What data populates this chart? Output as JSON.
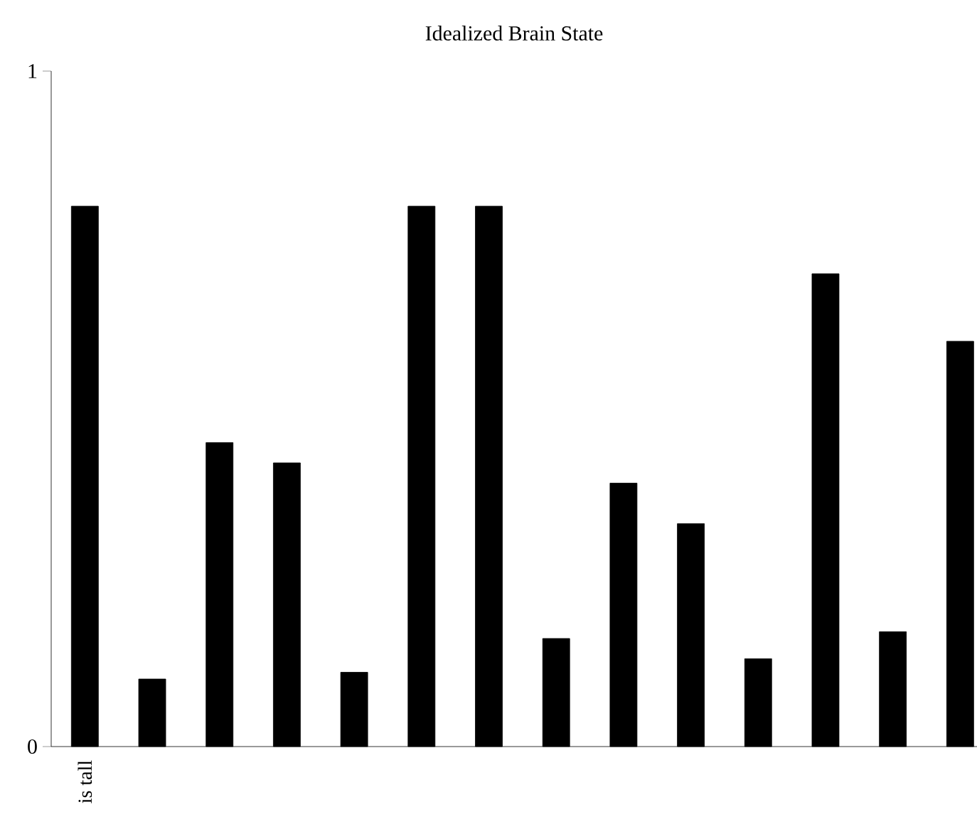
{
  "chart_data": {
    "type": "bar",
    "title": "Idealized Brain State",
    "categories": [
      "is tall",
      null,
      null,
      null,
      null,
      null,
      null,
      null,
      null,
      null,
      null,
      null,
      null,
      null
    ],
    "values": [
      0.8,
      0.1,
      0.45,
      0.42,
      0.11,
      0.8,
      0.8,
      0.16,
      0.39,
      0.33,
      0.13,
      0.7,
      0.17,
      0.6
    ],
    "color": "#000000",
    "ylim": [
      0,
      1
    ],
    "yticks": [
      0,
      1
    ],
    "grid": false
  }
}
